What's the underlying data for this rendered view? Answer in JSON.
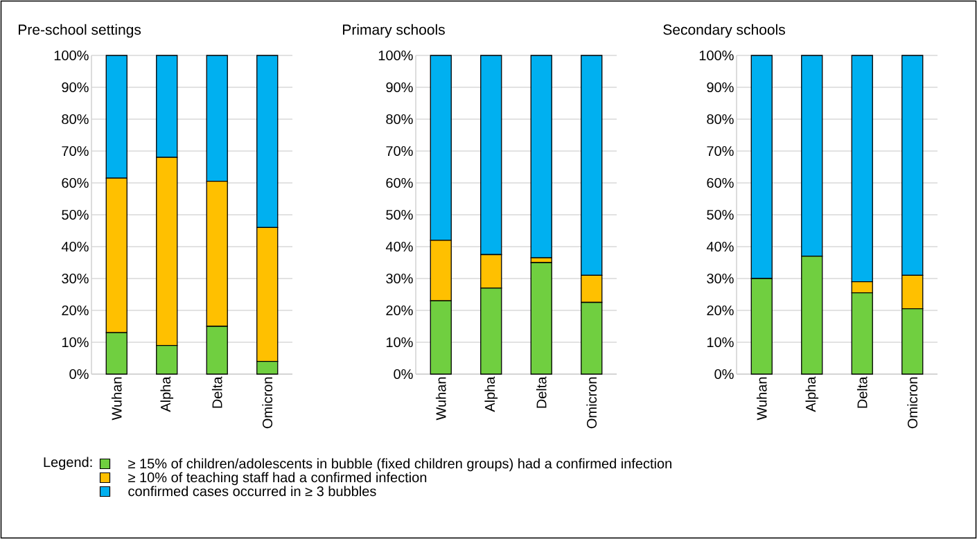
{
  "chart_data": [
    {
      "type": "bar",
      "stacked": true,
      "title": "Pre-school settings",
      "categories": [
        "Wuhan",
        "Alpha",
        "Delta",
        "Omicron"
      ],
      "ylim": [
        0,
        100
      ],
      "yticks": [
        {
          "value": 0,
          "label": "0%"
        },
        {
          "value": 10,
          "label": "10%"
        },
        {
          "value": 20,
          "label": "20%"
        },
        {
          "value": 30,
          "label": "30%"
        },
        {
          "value": 40,
          "label": "40%"
        },
        {
          "value": 50,
          "label": "50%"
        },
        {
          "value": 60,
          "label": "60%"
        },
        {
          "value": 70,
          "label": "70%"
        },
        {
          "value": 80,
          "label": "80%"
        },
        {
          "value": 90,
          "label": "90%"
        },
        {
          "value": 100,
          "label": "100%"
        }
      ],
      "grid": "y",
      "legend": "bottom",
      "legend_title": "Legend:",
      "series": [
        {
          "name": "≥ 15% of children/adolescents in bubble (fixed children groups) had a confirmed infection",
          "color": "#70cf40",
          "values": [
            13,
            9,
            15,
            4
          ]
        },
        {
          "name": "≥ 10% of teaching staff had a confirmed infection",
          "color": "#ffc000",
          "values": [
            48.5,
            59,
            45.5,
            42
          ]
        },
        {
          "name": "confirmed cases occurred in ≥ 3 bubbles",
          "color": "#00b0f0",
          "values": [
            38.5,
            32,
            39.5,
            54
          ]
        }
      ]
    },
    {
      "type": "bar",
      "stacked": true,
      "title": "Primary schools",
      "categories": [
        "Wuhan",
        "Alpha",
        "Delta",
        "Omicron"
      ],
      "ylim": [
        0,
        100
      ],
      "yticks": [
        {
          "value": 0,
          "label": "0%"
        },
        {
          "value": 10,
          "label": "10%"
        },
        {
          "value": 20,
          "label": "20%"
        },
        {
          "value": 30,
          "label": "30%"
        },
        {
          "value": 40,
          "label": "40%"
        },
        {
          "value": 50,
          "label": "50%"
        },
        {
          "value": 60,
          "label": "60%"
        },
        {
          "value": 70,
          "label": "70%"
        },
        {
          "value": 80,
          "label": "80%"
        },
        {
          "value": 90,
          "label": "90%"
        },
        {
          "value": 100,
          "label": "100%"
        }
      ],
      "grid": "y",
      "series": [
        {
          "color": "#70cf40",
          "values": [
            23,
            27,
            35,
            22.5
          ]
        },
        {
          "color": "#ffc000",
          "values": [
            19,
            10.5,
            1.5,
            8.5
          ]
        },
        {
          "color": "#00b0f0",
          "values": [
            58,
            62.5,
            63.5,
            69
          ]
        }
      ]
    },
    {
      "type": "bar",
      "stacked": true,
      "title": "Secondary schools",
      "categories": [
        "Wuhan",
        "Alpha",
        "Delta",
        "Omicron"
      ],
      "ylim": [
        0,
        100
      ],
      "yticks": [
        {
          "value": 0,
          "label": "0%"
        },
        {
          "value": 10,
          "label": "10%"
        },
        {
          "value": 20,
          "label": "20%"
        },
        {
          "value": 30,
          "label": "30%"
        },
        {
          "value": 40,
          "label": "40%"
        },
        {
          "value": 50,
          "label": "50%"
        },
        {
          "value": 60,
          "label": "60%"
        },
        {
          "value": 70,
          "label": "70%"
        },
        {
          "value": 80,
          "label": "80%"
        },
        {
          "value": 90,
          "label": "90%"
        },
        {
          "value": 100,
          "label": "100%"
        }
      ],
      "grid": "y",
      "series": [
        {
          "color": "#70cf40",
          "values": [
            30,
            37,
            25.5,
            20.5
          ]
        },
        {
          "color": "#ffc000",
          "values": [
            0,
            0,
            3.5,
            10.5
          ]
        },
        {
          "color": "#00b0f0",
          "values": [
            70,
            63,
            71,
            69
          ]
        }
      ]
    }
  ]
}
